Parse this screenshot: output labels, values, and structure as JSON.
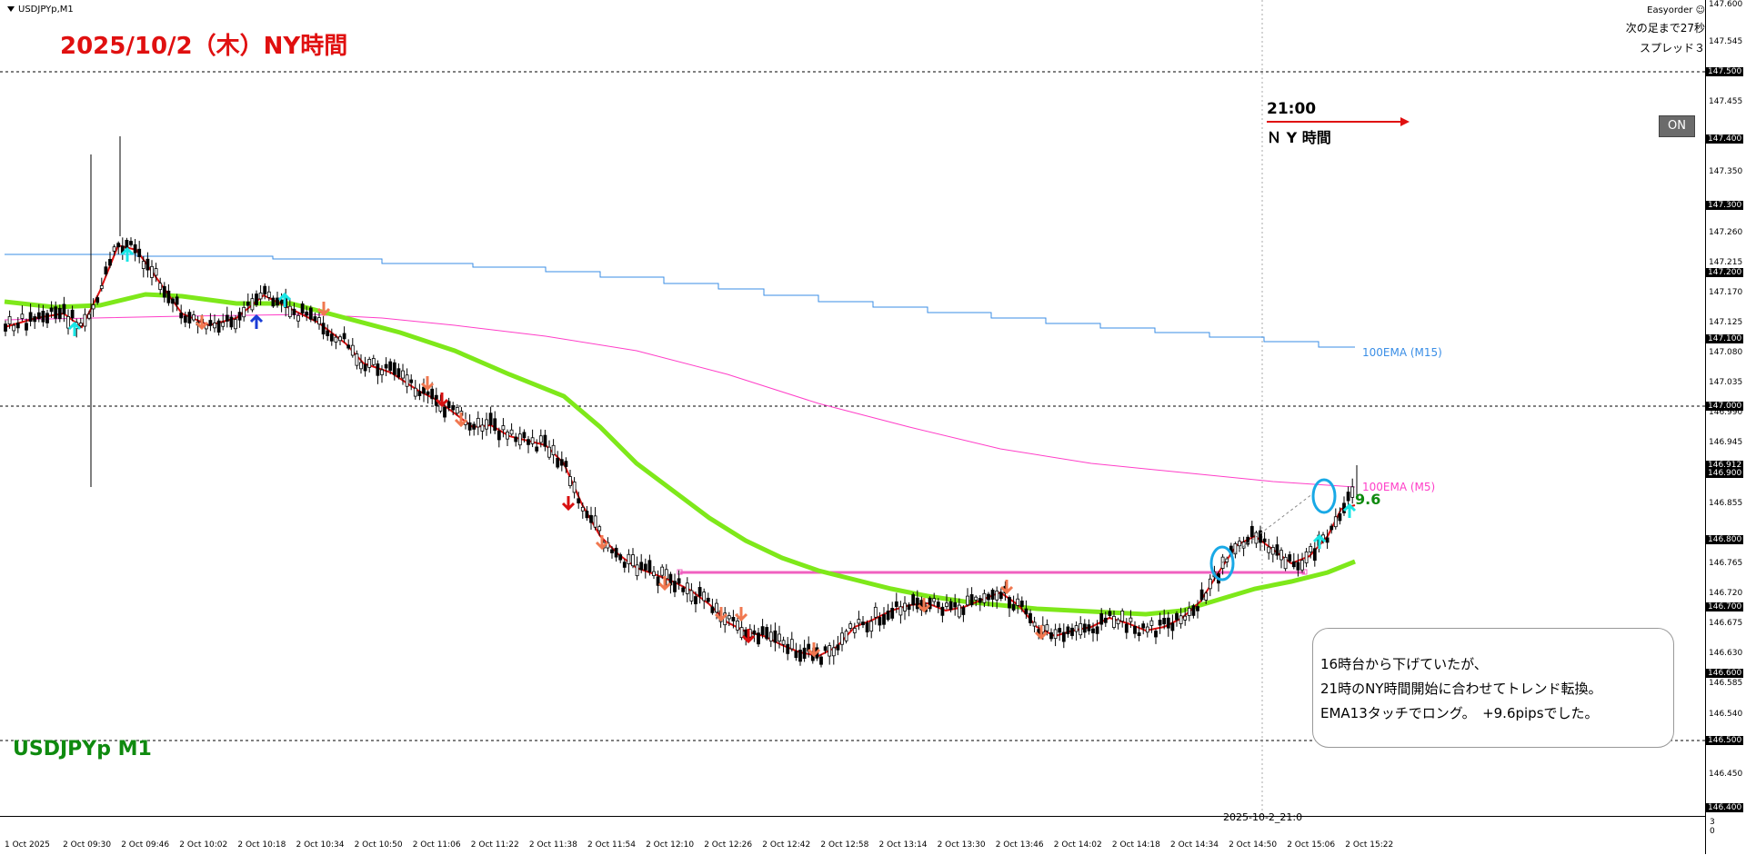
{
  "chart": {
    "symbol_header": "USDJPYp,M1",
    "date_title": "2025/10/2（木）NY時間",
    "ea_name": "Easyorder",
    "bar_timer": "次の足まで27秒",
    "spread": "スプレッド３",
    "on_button": "ON",
    "ny_time": "21:00",
    "ny_label": "Ｎ Y 時間",
    "ema_m15_label": "100EMA (M15)",
    "ema_m5_label": "100EMA (M5)",
    "pips_label": "9.6",
    "watermark": "USDJPYp  M1",
    "vertical_line_label": "2025-10-2_21:0",
    "comment": [
      "16時台から下げていたが、",
      "21時のNY時間開始に合わせてトレンド転換。",
      "EMA13タッチでロング。　+9.6pipsでした。"
    ]
  },
  "price_axis": {
    "labels": [
      "147.600",
      "147.545",
      "147.500",
      "147.455",
      "147.400",
      "147.350",
      "147.300",
      "147.260",
      "147.215",
      "147.200",
      "147.170",
      "147.125",
      "147.100",
      "147.080",
      "147.035",
      "147.000",
      "146.990",
      "146.945",
      "146.912",
      "146.900",
      "146.855",
      "146.800",
      "146.765",
      "146.720",
      "146.700",
      "146.675",
      "146.630",
      "146.600",
      "146.585",
      "146.540",
      "146.500",
      "146.450",
      "146.400"
    ],
    "highlighted": [
      "147.500",
      "147.400",
      "147.300",
      "147.200",
      "147.100",
      "147.000",
      "146.912",
      "146.900",
      "146.800",
      "146.700",
      "146.600",
      "146.500",
      "146.400"
    ]
  },
  "time_axis": {
    "labels": [
      "1 Oct 2025",
      "2 Oct 09:30",
      "2 Oct 09:46",
      "2 Oct 10:02",
      "2 Oct 10:18",
      "2 Oct 10:34",
      "2 Oct 10:50",
      "2 Oct 11:06",
      "2 Oct 11:22",
      "2 Oct 11:38",
      "2 Oct 11:54",
      "2 Oct 12:10",
      "2 Oct 12:26",
      "2 Oct 12:42",
      "2 Oct 12:58",
      "2 Oct 13:14",
      "2 Oct 13:30",
      "2 Oct 13:46",
      "2 Oct 14:02",
      "2 Oct 14:18",
      "2 Oct 14:34",
      "2 Oct 14:50",
      "2 Oct 15:06",
      "2 Oct 15:22"
    ]
  },
  "indicator_axis": {
    "top": "3",
    "bottom": "0"
  },
  "colors": {
    "ema13": "#e01010",
    "ema_green": "#7ee81a",
    "ema_m15": "#3a8ee6",
    "ema_m5": "#ff3ec8",
    "level_line": "#f060c0",
    "arrow_up": "#19e6e6",
    "arrow_down": "#f07850",
    "circle": "#19a9e6"
  }
}
